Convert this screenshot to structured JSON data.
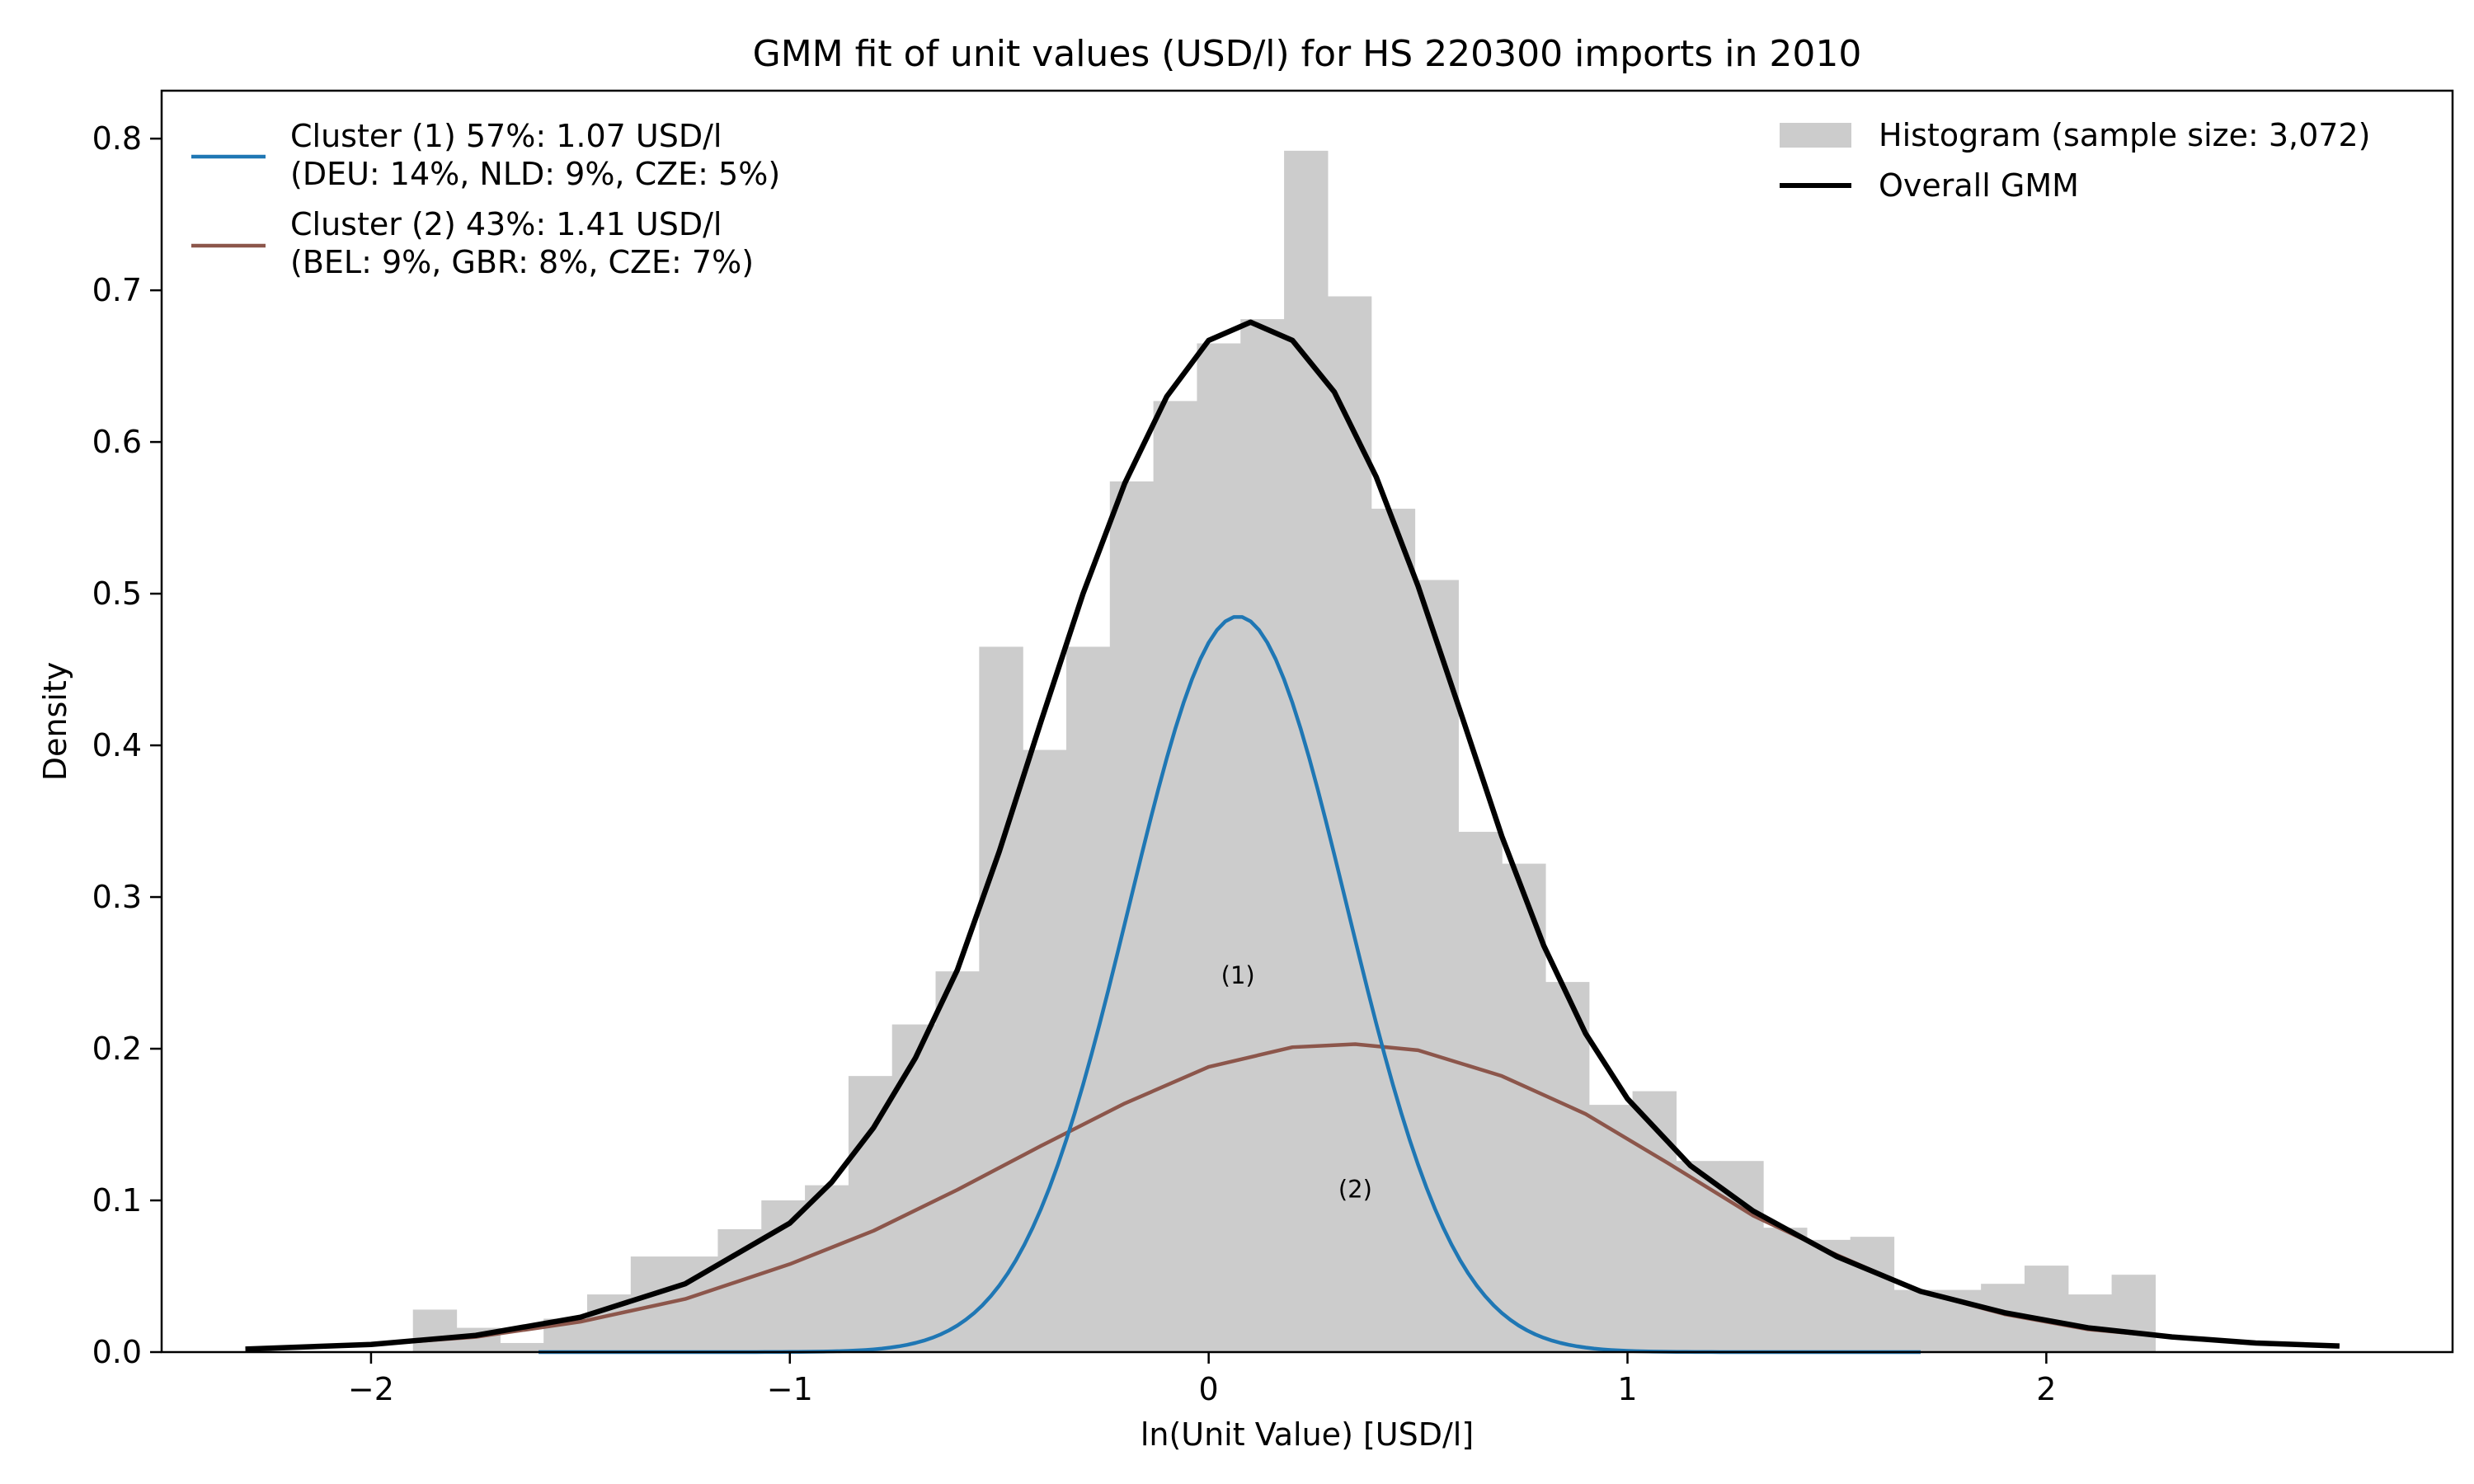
{
  "chart_data": {
    "type": "histogram",
    "title": "GMM fit of unit values (USD/l) for HS 220300 imports in 2010",
    "xlabel": "ln(Unit Value) [USD/l]",
    "ylabel": "Density",
    "xlim": [
      -2.5,
      2.97
    ],
    "ylim": [
      0,
      0.8316
    ],
    "xticks": [
      -2,
      -1,
      0,
      1,
      2
    ],
    "xtick_labels": [
      "−2",
      "−1",
      "0",
      "1",
      "2"
    ],
    "yticks": [
      0.0,
      0.1,
      0.2,
      0.3,
      0.4,
      0.5,
      0.6,
      0.7,
      0.8
    ],
    "ytick_labels": [
      "0.0",
      "0.1",
      "0.2",
      "0.3",
      "0.4",
      "0.5",
      "0.6",
      "0.7",
      "0.8"
    ],
    "grid": false,
    "histogram": {
      "label": "Histogram (sample size: 3,072)",
      "color": "#cccccc",
      "bin_start": -1.9,
      "bin_width": 0.104,
      "densities": [
        0.028,
        0.016,
        0.006,
        0.022,
        0.038,
        0.063,
        0.063,
        0.081,
        0.1,
        0.11,
        0.182,
        0.216,
        0.251,
        0.465,
        0.397,
        0.465,
        0.574,
        0.627,
        0.665,
        0.681,
        0.792,
        0.696,
        0.556,
        0.509,
        0.343,
        0.322,
        0.244,
        0.163,
        0.172,
        0.126,
        0.126,
        0.082,
        0.074,
        0.076,
        0.041,
        0.041,
        0.045,
        0.057,
        0.038,
        0.051
      ]
    },
    "series": [
      {
        "name": "Overall GMM",
        "color": "#000000",
        "x": [
          -2.3,
          -2.0,
          -1.75,
          -1.5,
          -1.25,
          -1.0,
          -0.9,
          -0.8,
          -0.7,
          -0.6,
          -0.5,
          -0.4,
          -0.3,
          -0.2,
          -0.1,
          0.0,
          0.1,
          0.2,
          0.3,
          0.4,
          0.5,
          0.6,
          0.7,
          0.8,
          0.9,
          1.0,
          1.15,
          1.3,
          1.5,
          1.7,
          1.9,
          2.1,
          2.3,
          2.5,
          2.7
        ],
        "values": [
          0.002,
          0.005,
          0.011,
          0.023,
          0.045,
          0.085,
          0.112,
          0.148,
          0.194,
          0.252,
          0.33,
          0.416,
          0.5,
          0.573,
          0.63,
          0.667,
          0.679,
          0.667,
          0.633,
          0.577,
          0.505,
          0.423,
          0.34,
          0.268,
          0.21,
          0.167,
          0.123,
          0.093,
          0.063,
          0.04,
          0.026,
          0.016,
          0.01,
          0.006,
          0.004
        ]
      },
      {
        "name": "Cluster (1) 57%: 1.07 USD/l",
        "legend_line2": "(DEU: 14%, NLD: 9%, CZE: 5%)",
        "color": "#1f77b4",
        "mean": 0.07,
        "sd": 0.26,
        "peak": 0.485
      },
      {
        "name": "Cluster (2) 43%: 1.41 USD/l",
        "legend_line2": "(BEL: 9%, GBR: 8%, CZE: 7%)",
        "color": "#8c564b",
        "x": [
          -2.3,
          -2.0,
          -1.75,
          -1.5,
          -1.25,
          -1.0,
          -0.8,
          -0.6,
          -0.4,
          -0.2,
          0.0,
          0.2,
          0.35,
          0.5,
          0.7,
          0.9,
          1.1,
          1.3,
          1.5,
          1.7,
          1.9,
          2.1,
          2.3,
          2.5,
          2.7
        ],
        "values": [
          0.002,
          0.005,
          0.01,
          0.02,
          0.035,
          0.058,
          0.08,
          0.107,
          0.136,
          0.164,
          0.188,
          0.201,
          0.203,
          0.199,
          0.182,
          0.157,
          0.124,
          0.09,
          0.064,
          0.04,
          0.025,
          0.015,
          0.01,
          0.006,
          0.004
        ]
      }
    ],
    "annotations": [
      {
        "text": "(1)",
        "x": 0.07,
        "y": 0.243
      },
      {
        "text": "(2)",
        "x": 0.35,
        "y": 0.102
      }
    ],
    "legend": {
      "left_placement": "upper-left",
      "right_placement": "upper-right"
    }
  }
}
